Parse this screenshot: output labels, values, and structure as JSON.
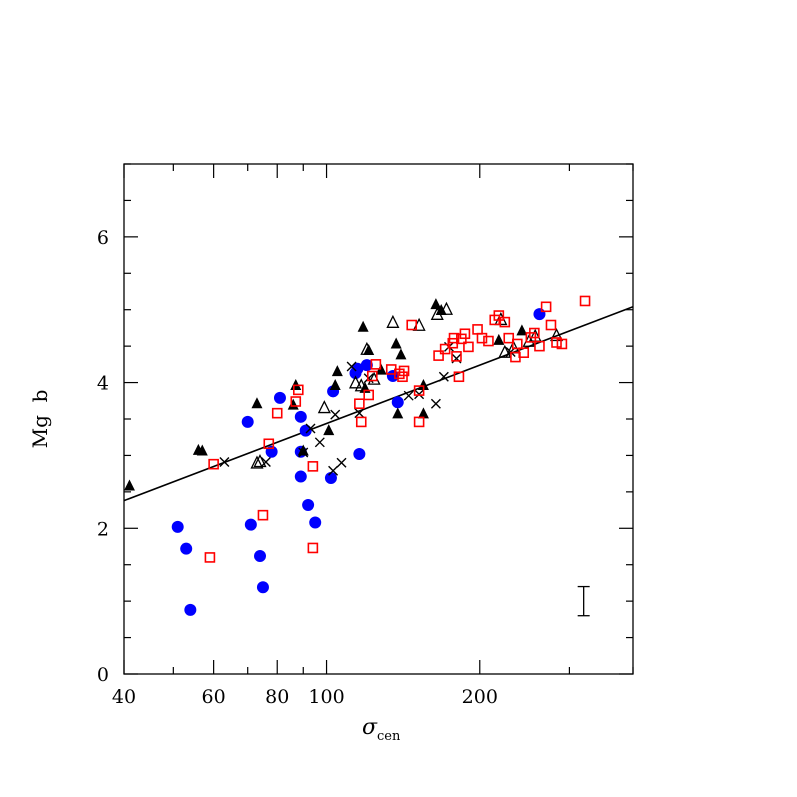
{
  "chart_data": {
    "type": "scatter",
    "title": "",
    "xlabel": "σ",
    "xlabel_sub": "cen",
    "ylabel": "Mg  b",
    "x_scale": "log",
    "xlim": [
      40,
      400
    ],
    "ylim": [
      0,
      7
    ],
    "x_ticks": [
      40,
      60,
      80,
      100,
      200
    ],
    "y_ticks": [
      0,
      2,
      4,
      6
    ],
    "grid": false,
    "legend": "none",
    "series": [
      {
        "marker": "filled-circle",
        "color": "#0000ff",
        "points": [
          [
            51,
            2.02
          ],
          [
            53,
            1.72
          ],
          [
            54,
            0.88
          ],
          [
            70,
            3.46
          ],
          [
            71,
            2.05
          ],
          [
            74,
            1.62
          ],
          [
            75,
            1.19
          ],
          [
            78,
            3.05
          ],
          [
            81,
            3.79
          ],
          [
            89,
            3.53
          ],
          [
            89,
            2.71
          ],
          [
            89,
            3.05
          ],
          [
            91,
            3.34
          ],
          [
            92,
            2.32
          ],
          [
            95,
            2.08
          ],
          [
            103,
            3.88
          ],
          [
            102,
            2.69
          ],
          [
            114,
            4.13
          ],
          [
            115,
            4.19
          ],
          [
            120,
            4.24
          ],
          [
            116,
            3.02
          ],
          [
            135,
            4.09
          ],
          [
            138,
            3.73
          ],
          [
            262,
            4.94
          ]
        ]
      },
      {
        "marker": "filled-triangle",
        "color": "#000000",
        "points": [
          [
            41,
            2.58
          ],
          [
            56,
            3.07
          ],
          [
            57,
            3.06
          ],
          [
            73,
            3.71
          ],
          [
            86,
            3.69
          ],
          [
            87,
            3.96
          ],
          [
            90,
            3.06
          ],
          [
            101,
            3.34
          ],
          [
            104,
            3.96
          ],
          [
            105,
            4.15
          ],
          [
            119,
            3.92
          ],
          [
            118,
            4.76
          ],
          [
            121,
            4.44
          ],
          [
            128,
            4.17
          ],
          [
            137,
            4.53
          ],
          [
            140,
            4.38
          ],
          [
            138,
            3.57
          ],
          [
            155,
            3.96
          ],
          [
            155,
            3.57
          ],
          [
            164,
            5.07
          ],
          [
            168,
            4.99
          ],
          [
            218,
            4.58
          ],
          [
            242,
            4.71
          ]
        ]
      },
      {
        "marker": "open-triangle",
        "color": "#000000",
        "points": [
          [
            73,
            2.89
          ],
          [
            74,
            2.91
          ],
          [
            99,
            3.65
          ],
          [
            114,
            3.99
          ],
          [
            117,
            3.95
          ],
          [
            120,
            4.45
          ],
          [
            124,
            4.04
          ],
          [
            135,
            4.82
          ],
          [
            152,
            4.78
          ],
          [
            165,
            4.93
          ],
          [
            172,
            5.0
          ],
          [
            220,
            4.86
          ],
          [
            224,
            4.41
          ],
          [
            233,
            4.47
          ],
          [
            250,
            4.56
          ],
          [
            257,
            4.63
          ],
          [
            283,
            4.64
          ]
        ]
      },
      {
        "marker": "cross",
        "color": "#000000",
        "points": [
          [
            63,
            2.91
          ],
          [
            76,
            2.91
          ],
          [
            90,
            3.04
          ],
          [
            93,
            3.37
          ],
          [
            97,
            3.18
          ],
          [
            103,
            2.79
          ],
          [
            104,
            3.56
          ],
          [
            107,
            2.9
          ],
          [
            112,
            4.22
          ],
          [
            116,
            3.58
          ],
          [
            121,
            4.06
          ],
          [
            145,
            3.82
          ],
          [
            152,
            3.84
          ],
          [
            164,
            3.71
          ],
          [
            170,
            4.08
          ],
          [
            174,
            4.49
          ],
          [
            180,
            4.33
          ],
          [
            230,
            4.42
          ]
        ]
      },
      {
        "marker": "open-square",
        "color": "#ff0000",
        "points": [
          [
            59,
            1.6
          ],
          [
            60,
            2.88
          ],
          [
            75,
            2.18
          ],
          [
            77,
            3.16
          ],
          [
            80,
            3.58
          ],
          [
            87,
            3.74
          ],
          [
            88,
            3.9
          ],
          [
            94,
            2.85
          ],
          [
            94,
            1.73
          ],
          [
            116,
            3.71
          ],
          [
            117,
            3.46
          ],
          [
            121,
            3.83
          ],
          [
            123,
            4.09
          ],
          [
            125,
            4.25
          ],
          [
            134,
            4.18
          ],
          [
            139,
            4.12
          ],
          [
            141,
            4.08
          ],
          [
            142,
            4.16
          ],
          [
            147,
            4.79
          ],
          [
            152,
            3.46
          ],
          [
            152,
            3.89
          ],
          [
            166,
            4.37
          ],
          [
            171,
            4.46
          ],
          [
            177,
            4.54
          ],
          [
            178,
            4.61
          ],
          [
            180,
            4.36
          ],
          [
            182,
            4.08
          ],
          [
            184,
            4.6
          ],
          [
            187,
            4.67
          ],
          [
            190,
            4.49
          ],
          [
            198,
            4.73
          ],
          [
            202,
            4.61
          ],
          [
            208,
            4.57
          ],
          [
            214,
            4.86
          ],
          [
            218,
            4.92
          ],
          [
            224,
            4.83
          ],
          [
            228,
            4.61
          ],
          [
            235,
            4.35
          ],
          [
            237,
            4.53
          ],
          [
            244,
            4.41
          ],
          [
            252,
            4.62
          ],
          [
            256,
            4.68
          ],
          [
            262,
            4.5
          ],
          [
            270,
            5.04
          ],
          [
            276,
            4.79
          ],
          [
            283,
            4.55
          ],
          [
            290,
            4.53
          ],
          [
            322,
            5.12
          ]
        ]
      }
    ],
    "fit_line": {
      "x": [
        40,
        400
      ],
      "y": [
        2.38,
        5.04
      ]
    },
    "error_bar": {
      "x": 320,
      "y_low": 0.8,
      "y_high": 1.2
    }
  }
}
